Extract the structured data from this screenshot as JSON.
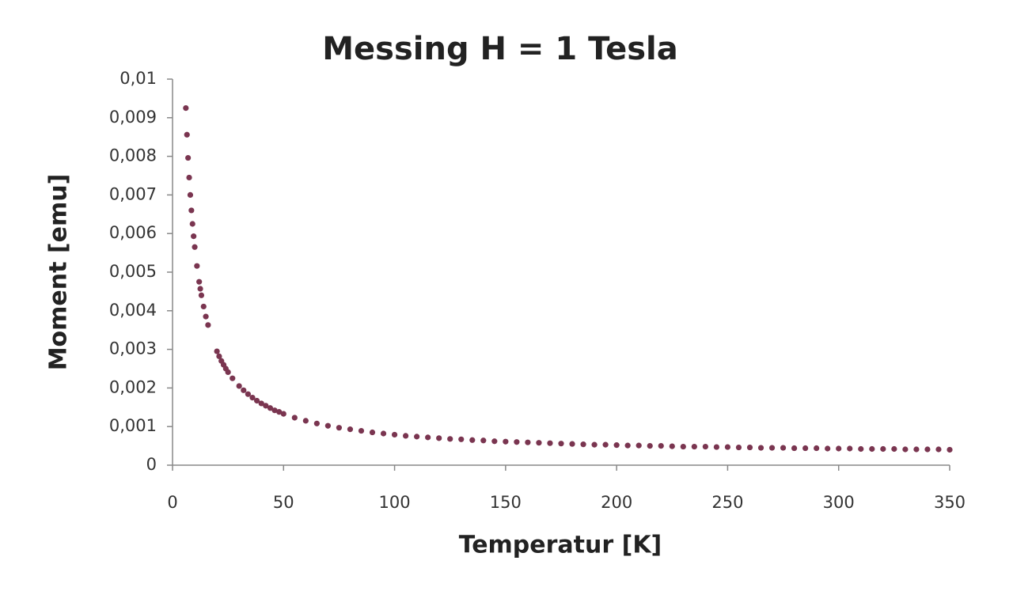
{
  "chart_data": {
    "type": "scatter",
    "title": "Messing  H = 1 Tesla",
    "x_label": "Temperatur [K]",
    "y_label": "Moment [emu]",
    "xlim": [
      0,
      350
    ],
    "xticks": [
      0,
      50,
      100,
      150,
      200,
      250,
      300,
      350
    ],
    "ylim": [
      0,
      0.01
    ],
    "yticks": [
      0,
      {
        "value": 0.001,
        "label": "0,001"
      },
      {
        "value": 0.002,
        "label": "0,002"
      },
      {
        "value": 0.003,
        "label": "0,003"
      },
      {
        "value": 0.004,
        "label": "0,004"
      },
      {
        "value": 0.005,
        "label": "0,005"
      },
      {
        "value": 0.006,
        "label": "0,006"
      },
      {
        "value": 0.007,
        "label": "0,007"
      },
      {
        "value": 0.008,
        "label": "0,008"
      },
      {
        "value": 0.009,
        "label": "0,009"
      },
      {
        "value": 0.01,
        "label": "0,01"
      }
    ],
    "grid": false,
    "color": "#7a3550",
    "x": [
      6,
      6.5,
      7,
      7.5,
      8,
      8.5,
      9,
      9.5,
      10,
      11,
      12,
      12.5,
      13,
      14,
      15,
      16,
      20,
      21,
      22,
      23,
      24,
      25,
      27,
      30,
      32,
      34,
      36,
      38,
      40,
      42,
      44,
      46,
      48,
      50,
      55,
      60,
      65,
      70,
      75,
      80,
      85,
      90,
      95,
      100,
      105,
      110,
      115,
      120,
      125,
      130,
      135,
      140,
      145,
      150,
      155,
      160,
      165,
      170,
      175,
      180,
      185,
      190,
      195,
      200,
      205,
      210,
      215,
      220,
      225,
      230,
      235,
      240,
      245,
      250,
      255,
      260,
      265,
      270,
      275,
      280,
      285,
      290,
      295,
      300,
      305,
      310,
      315,
      320,
      325,
      330,
      335,
      340,
      345,
      350
    ],
    "values": [
      0.00925,
      0.00856,
      0.00796,
      0.00745,
      0.007,
      0.0066,
      0.00625,
      0.00593,
      0.00565,
      0.00516,
      0.00475,
      0.00457,
      0.0044,
      0.00411,
      0.00385,
      0.00363,
      0.00295,
      0.00282,
      0.0027,
      0.0026,
      0.0025,
      0.00241,
      0.00225,
      0.00205,
      0.00194,
      0.00184,
      0.00175,
      0.00167,
      0.0016,
      0.00154,
      0.00148,
      0.00142,
      0.00138,
      0.00133,
      0.00123,
      0.00115,
      0.00108,
      0.00102,
      0.00097,
      0.00093,
      0.00089,
      0.00085,
      0.00082,
      0.00079,
      0.00076,
      0.00074,
      0.00072,
      0.0007,
      0.00068,
      0.00067,
      0.00065,
      0.00064,
      0.00062,
      0.00061,
      0.0006,
      0.00059,
      0.00058,
      0.00057,
      0.00056,
      0.00055,
      0.00054,
      0.00053,
      0.00053,
      0.00052,
      0.00051,
      0.00051,
      0.0005,
      0.0005,
      0.00049,
      0.00048,
      0.00048,
      0.00048,
      0.00047,
      0.00047,
      0.00046,
      0.00046,
      0.00045,
      0.00045,
      0.00045,
      0.00044,
      0.00044,
      0.00044,
      0.00043,
      0.00043,
      0.00043,
      0.00042,
      0.00042,
      0.00042,
      0.00042,
      0.00041,
      0.00041,
      0.00041,
      0.00041,
      0.0004
    ]
  }
}
